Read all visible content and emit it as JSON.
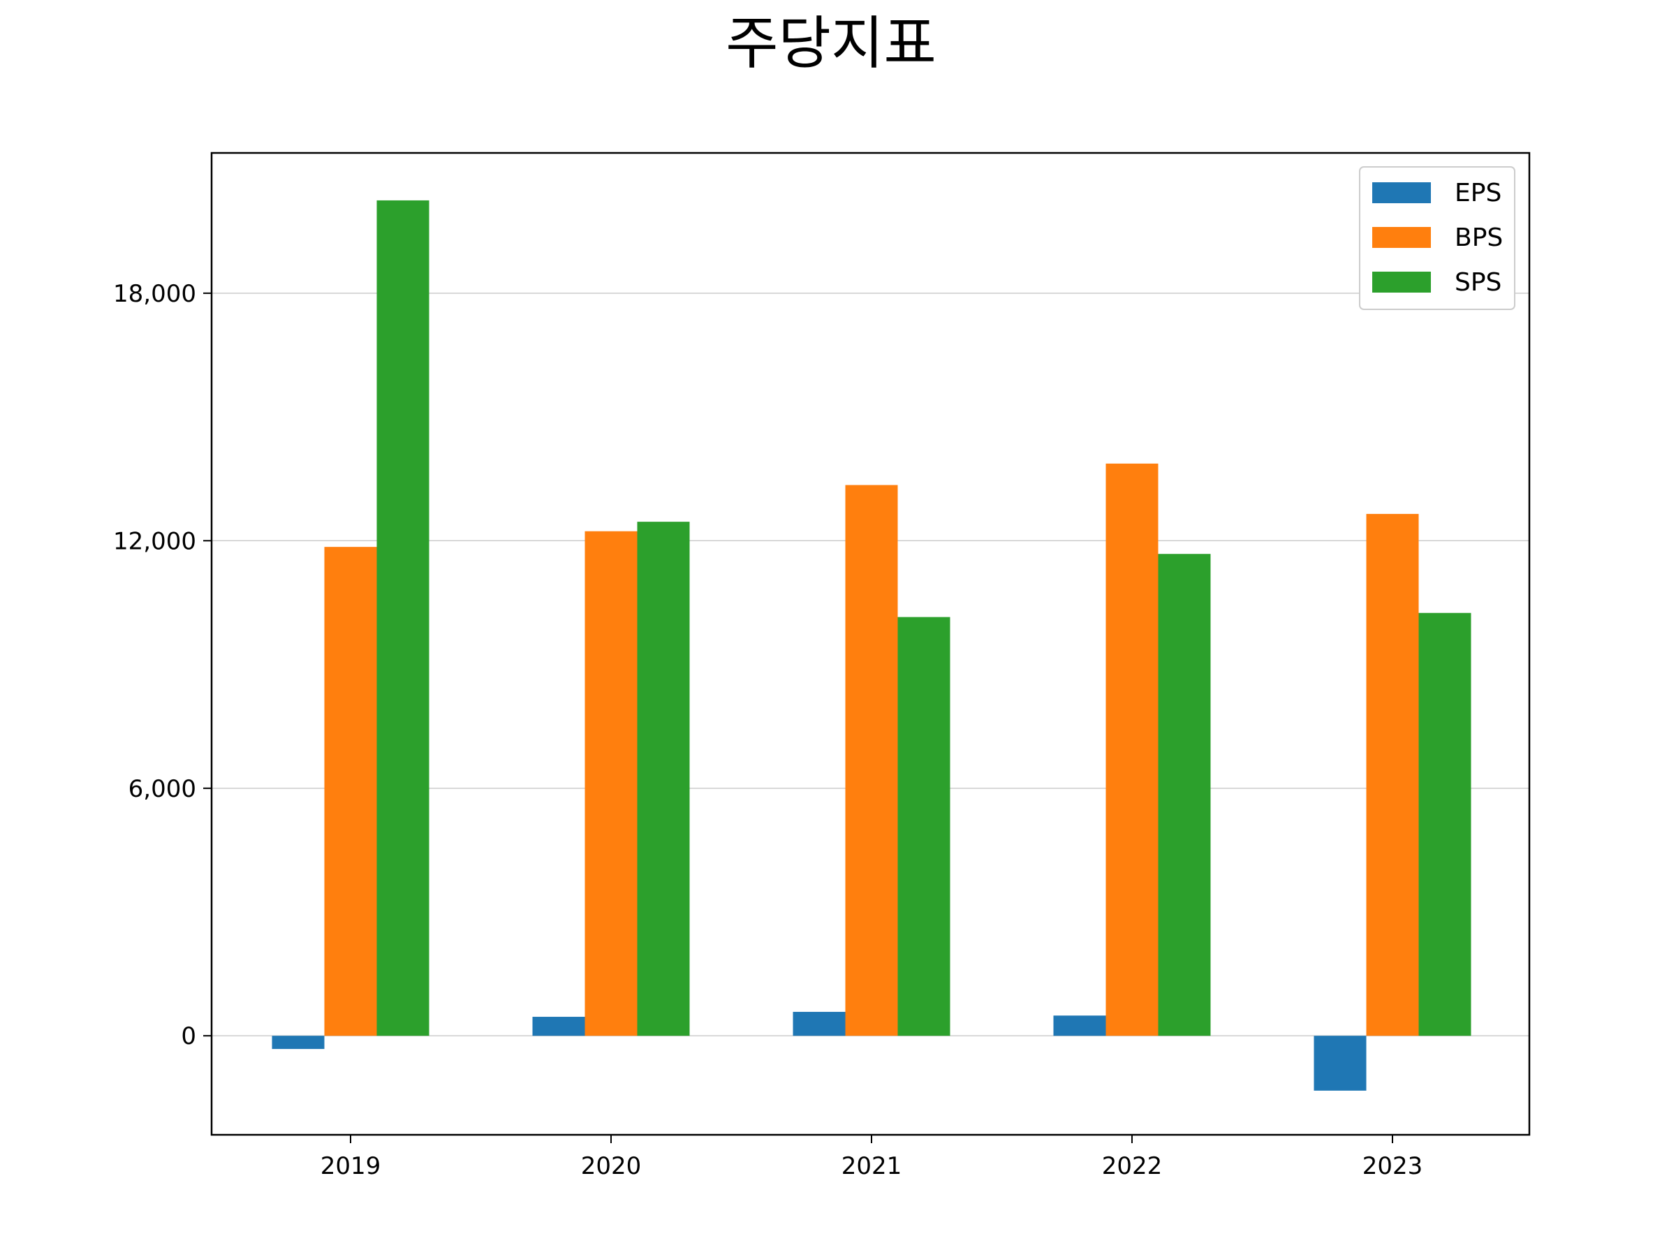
{
  "chart_data": {
    "type": "bar",
    "title": "주당지표",
    "xlabel": "",
    "ylabel": "",
    "categories": [
      "2019",
      "2020",
      "2021",
      "2022",
      "2023"
    ],
    "series": [
      {
        "name": "EPS",
        "color": "#1f77b4",
        "values": [
          -320,
          460,
          580,
          490,
          -1330
        ]
      },
      {
        "name": "BPS",
        "color": "#ff7f0e",
        "values": [
          11850,
          12230,
          13350,
          13870,
          12650
        ]
      },
      {
        "name": "SPS",
        "color": "#2ca02c",
        "values": [
          20250,
          12460,
          10150,
          11680,
          10250
        ]
      }
    ],
    "ylim": [
      -2400,
      21400
    ],
    "yticks": [
      0,
      6000,
      12000,
      18000
    ],
    "ytick_labels": [
      "0",
      "6,000",
      "12,000",
      "18,000"
    ],
    "grid": "y",
    "legend_position": "top-right"
  }
}
